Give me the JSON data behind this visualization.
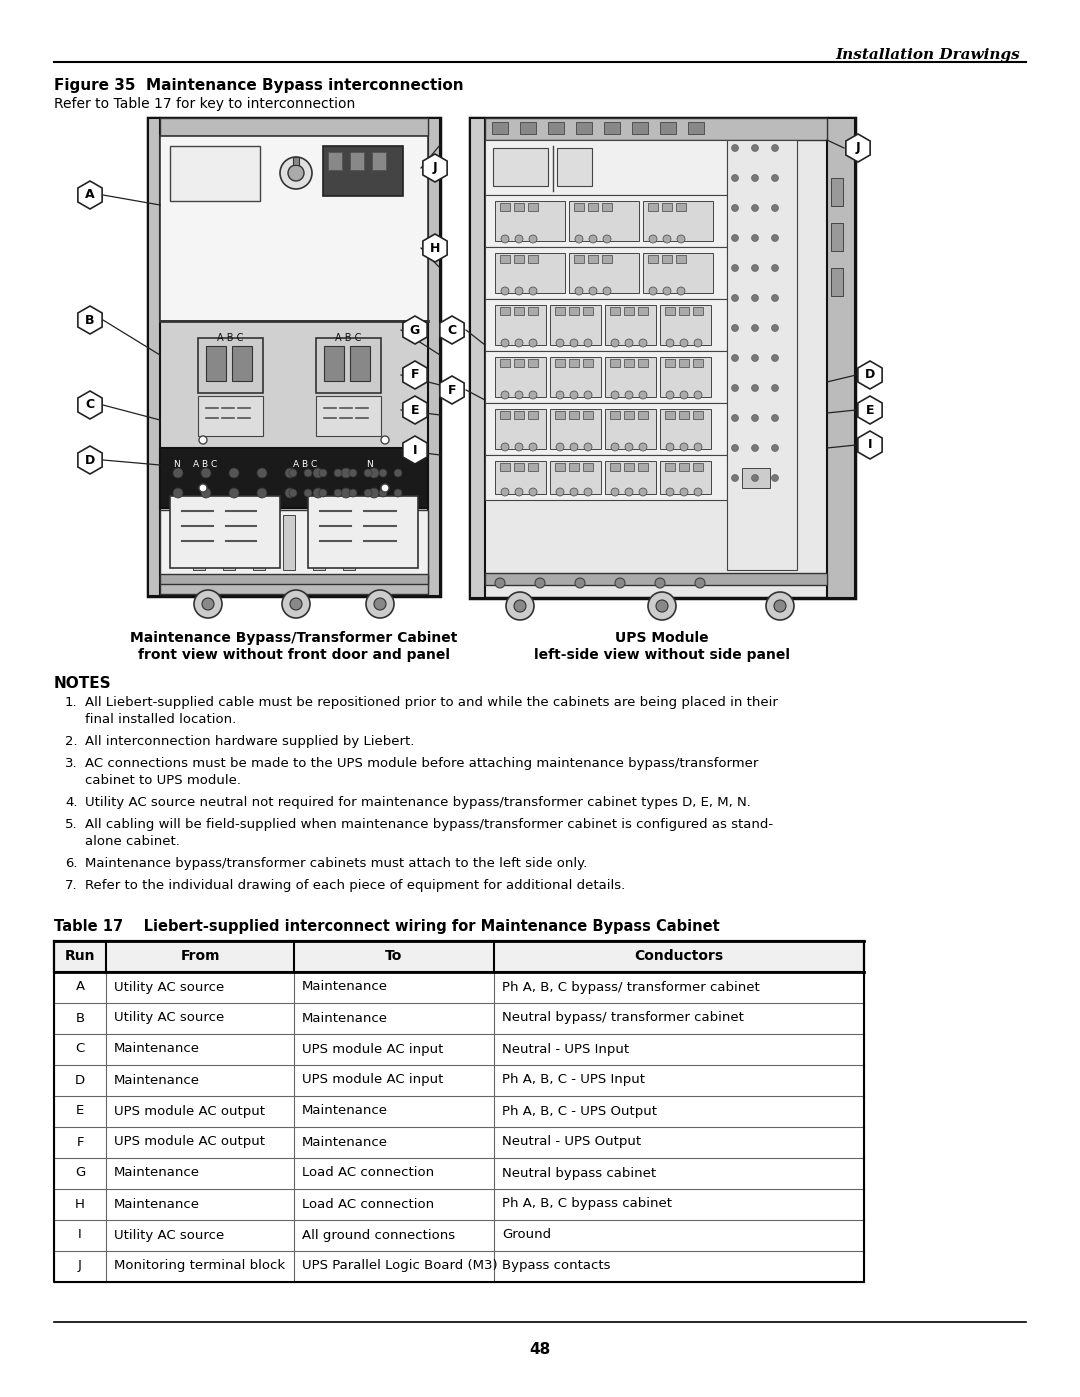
{
  "page_title_right": "Installation Drawings",
  "figure_title": "Figure 35  Maintenance Bypass interconnection",
  "figure_subtitle": "Refer to Table 17 for key to interconnection",
  "left_caption_line1": "Maintenance Bypass/Transformer Cabinet",
  "left_caption_line2": "front view without front door and panel",
  "right_caption_line1": "UPS Module",
  "right_caption_line2": "left-side view without side panel",
  "notes_title": "NOTES",
  "notes": [
    "All Liebert-supplied cable must be repositioned prior to and while the cabinets are being placed in their final installed location.",
    "All interconnection hardware supplied by Liebert.",
    "AC connections must be made to the UPS module before attaching maintenance bypass/transformer cabinet to UPS module.",
    "Utility AC source neutral not required for maintenance bypass/transformer cabinet types D, E, M, N.",
    "All cabling will be field-supplied when maintenance bypass/transformer cabinet is configured as stand-alone cabinet.",
    "Maintenance bypass/transformer cabinets must attach to the left side only.",
    "Refer to the individual drawing of each piece of equipment for additional details."
  ],
  "notes_wrap": [
    [
      "All Liebert-supplied cable must be repositioned prior to and while the cabinets are being placed in their",
      "final installed location."
    ],
    [
      "All interconnection hardware supplied by Liebert."
    ],
    [
      "AC connections must be made to the UPS module before attaching maintenance bypass/transformer",
      "cabinet to UPS module."
    ],
    [
      "Utility AC source neutral not required for maintenance bypass/transformer cabinet types D, E, M, N."
    ],
    [
      "All cabling will be field-supplied when maintenance bypass/transformer cabinet is configured as stand-",
      "alone cabinet."
    ],
    [
      "Maintenance bypass/transformer cabinets must attach to the left side only."
    ],
    [
      "Refer to the individual drawing of each piece of equipment for additional details."
    ]
  ],
  "table_title": "Table 17    Liebert-supplied interconnect wiring for Maintenance Bypass Cabinet",
  "table_headers": [
    "Run",
    "From",
    "To",
    "Conductors"
  ],
  "table_rows": [
    [
      "A",
      "Utility AC source",
      "Maintenance",
      "Ph A, B, C bypass/ transformer cabinet"
    ],
    [
      "B",
      "Utility AC source",
      "Maintenance",
      "Neutral bypass/ transformer cabinet"
    ],
    [
      "C",
      "Maintenance",
      "UPS module AC input",
      "Neutral - UPS Input"
    ],
    [
      "D",
      "Maintenance",
      "UPS module AC input",
      "Ph A, B, C - UPS Input"
    ],
    [
      "E",
      "UPS module AC output",
      "Maintenance",
      "Ph A, B, C - UPS Output"
    ],
    [
      "F",
      "UPS module AC output",
      "Maintenance",
      "Neutral - UPS Output"
    ],
    [
      "G",
      "Maintenance",
      "Load AC connection",
      "Neutral bypass cabinet"
    ],
    [
      "H",
      "Maintenance",
      "Load AC connection",
      "Ph A, B, C bypass cabinet"
    ],
    [
      "I",
      "Utility AC source",
      "All ground connections",
      "Ground"
    ],
    [
      "J",
      "Monitoring terminal block",
      "UPS Parallel Logic Board (M3)",
      "Bypass contacts"
    ]
  ],
  "page_number": "48",
  "bg_color": "#ffffff",
  "text_color": "#000000"
}
